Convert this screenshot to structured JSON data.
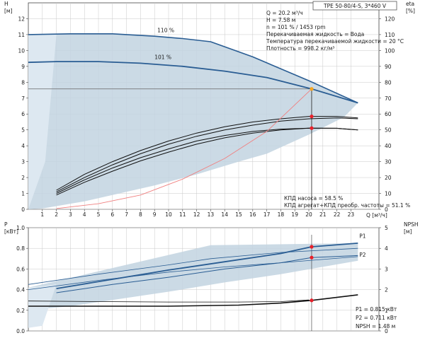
{
  "title_badge": "TPE 50-80/4-S, 3*460 V",
  "colors": {
    "envelope": "#c2d3e1",
    "envelope_light": "#dde8f1",
    "curve_blue": "#2a5d93",
    "curve_black": "#111111",
    "efficiency_red": "#f08080",
    "marker_red": "#e8202a",
    "marker_orange": "#f5a623",
    "grid": "#c9c9c9"
  },
  "chart_data": [
    {
      "type": "line",
      "title": "",
      "xlabel": "Q [м³/ч]",
      "ylabel": "H [м]",
      "y2label": "eta [%]",
      "xlim": [
        0,
        25
      ],
      "ylim": [
        0,
        13
      ],
      "y2lim": [
        0,
        130
      ],
      "x_ticks": [
        1,
        2,
        3,
        4,
        5,
        6,
        7,
        8,
        9,
        10,
        11,
        12,
        13,
        14,
        15,
        16,
        17,
        18,
        19,
        20,
        21,
        22,
        23
      ],
      "y_ticks": [
        0,
        1,
        2,
        3,
        4,
        5,
        6,
        7,
        8,
        9,
        10,
        11,
        12
      ],
      "y2_ticks": [
        0,
        10,
        20,
        30,
        40,
        50,
        60,
        70,
        80,
        90,
        100,
        110,
        120
      ],
      "grid": true,
      "duty_point": {
        "Q": 20.2,
        "H": 7.58
      },
      "info_lines": [
        "Q = 20.2 м³/ч",
        "H = 7.58 м",
        "n = 101 % / 1453 rpm",
        "Перекачиваемая жидкость = Вода",
        "Температура перекачиваемой жидкости = 20 °C",
        "Плотность = 998.2 кг/м³"
      ],
      "efficiency_lines": [
        "КПД насоса = 58.5 %",
        "КПД агрегат+КПД преобр. частоты = 51.1 %"
      ],
      "envelope": [
        [
          0,
          11.0
        ],
        [
          3,
          11.05
        ],
        [
          6,
          11.05
        ],
        [
          9,
          10.9
        ],
        [
          11,
          10.75
        ],
        [
          13,
          10.55
        ],
        [
          16,
          9.6
        ],
        [
          20,
          8.1
        ],
        [
          23.5,
          6.7
        ],
        [
          22.5,
          5.8
        ],
        [
          20,
          4.7
        ],
        [
          17,
          3.5
        ],
        [
          15,
          3.0
        ],
        [
          12,
          2.2
        ],
        [
          9,
          1.5
        ],
        [
          6,
          0.9
        ],
        [
          4,
          0.5
        ],
        [
          1,
          0.05
        ],
        [
          0,
          0
        ]
      ],
      "envelope_light": [
        [
          0,
          11.0
        ],
        [
          2,
          11.0
        ],
        [
          1.2,
          3.0
        ],
        [
          0,
          0
        ]
      ],
      "series": [
        {
          "name": "110 %",
          "axis": "y",
          "color_key": "curve_blue",
          "width": 1.6,
          "points": [
            [
              0,
              11.0
            ],
            [
              3,
              11.05
            ],
            [
              6,
              11.05
            ],
            [
              9,
              10.9
            ],
            [
              11,
              10.75
            ],
            [
              13,
              10.55
            ],
            [
              16,
              9.6
            ],
            [
              20,
              8.1
            ],
            [
              23.5,
              6.7
            ]
          ]
        },
        {
          "name": "101 %",
          "axis": "y",
          "color_key": "curve_blue",
          "width": 1.8,
          "points": [
            [
              0,
              9.25
            ],
            [
              2,
              9.3
            ],
            [
              5,
              9.3
            ],
            [
              8,
              9.2
            ],
            [
              11,
              9.0
            ],
            [
              14,
              8.7
            ],
            [
              17,
              8.3
            ],
            [
              20.2,
              7.58
            ],
            [
              23.5,
              6.7
            ]
          ]
        },
        {
          "axis": "y2",
          "color_key": "curve_black",
          "width": 1.0,
          "points": [
            [
              2,
              12
            ],
            [
              4,
              22
            ],
            [
              6,
              30
            ],
            [
              8,
              37
            ],
            [
              10,
              43
            ],
            [
              12,
              48
            ],
            [
              14,
              52
            ],
            [
              16,
              55
            ],
            [
              18,
              57
            ],
            [
              20,
              58.5
            ],
            [
              22,
              58.5
            ],
            [
              23.5,
              57.5
            ]
          ]
        },
        {
          "axis": "y2",
          "color_key": "curve_black",
          "width": 1.0,
          "points": [
            [
              2,
              11
            ],
            [
              4,
              20
            ],
            [
              6,
              28
            ],
            [
              8,
              35
            ],
            [
              10,
              41
            ],
            [
              12,
              46
            ],
            [
              14,
              50
            ],
            [
              16,
              53
            ],
            [
              18,
              55.5
            ],
            [
              20,
              57
            ],
            [
              22,
              57.5
            ],
            [
              23.5,
              57
            ]
          ]
        },
        {
          "axis": "y2",
          "color_key": "curve_black",
          "width": 1.0,
          "points": [
            [
              2,
              10
            ],
            [
              4,
              18.5
            ],
            [
              6,
              26
            ],
            [
              8,
              32.5
            ],
            [
              10,
              38
            ],
            [
              12,
              43
            ],
            [
              14,
              46.5
            ],
            [
              16,
              49
            ],
            [
              18,
              50.5
            ],
            [
              20,
              51.1
            ],
            [
              22,
              51
            ],
            [
              23.5,
              50
            ]
          ]
        },
        {
          "axis": "y2",
          "color_key": "curve_black",
          "width": 1.0,
          "points": [
            [
              2,
              9
            ],
            [
              4,
              17
            ],
            [
              6,
              24
            ],
            [
              8,
              30.5
            ],
            [
              10,
              36
            ],
            [
              12,
              41
            ],
            [
              14,
              45
            ],
            [
              16,
              48
            ],
            [
              18,
              50
            ],
            [
              20,
              51.1
            ],
            [
              22,
              51
            ],
            [
              23.5,
              50
            ]
          ]
        },
        {
          "axis": "y",
          "color_key": "efficiency_red",
          "width": 0.9,
          "points": [
            [
              2,
              0.05
            ],
            [
              5,
              0.35
            ],
            [
              8,
              0.9
            ],
            [
              11,
              1.9
            ],
            [
              14,
              3.2
            ],
            [
              17,
              4.9
            ],
            [
              20.2,
              7.58
            ]
          ]
        }
      ],
      "markers": [
        {
          "axis": "y",
          "x": 20.2,
          "y": 7.58,
          "color_key": "marker_orange"
        },
        {
          "axis": "y2",
          "x": 20.2,
          "y": 58.5,
          "color_key": "marker_red"
        },
        {
          "axis": "y2",
          "x": 20.2,
          "y": 51.1,
          "color_key": "marker_red"
        }
      ],
      "curve_labels": [
        {
          "text": "110 %",
          "x": 9.2,
          "y": 11.15
        },
        {
          "text": "101 %",
          "x": 9.0,
          "y": 9.45
        }
      ]
    },
    {
      "type": "line",
      "title": "",
      "ylabel": "P [кВт]",
      "y2label": "NPSH [м]",
      "xlim": [
        0,
        25
      ],
      "ylim": [
        0,
        1.0
      ],
      "y2lim": [
        0,
        5
      ],
      "y_ticks": [
        0,
        0.2,
        0.4,
        0.6,
        0.8,
        1.0
      ],
      "y_tick_labels": [
        "0.0",
        "0.2",
        "0.4",
        "0.6",
        "0.8",
        "1.0"
      ],
      "y2_ticks": [
        0,
        1,
        2,
        3,
        4,
        5
      ],
      "grid": true,
      "envelope": [
        [
          0,
          0.42
        ],
        [
          13,
          0.83
        ],
        [
          23.5,
          0.85
        ],
        [
          23.5,
          0.68
        ],
        [
          18,
          0.55
        ],
        [
          14,
          0.47
        ],
        [
          10,
          0.38
        ],
        [
          6,
          0.3
        ],
        [
          3,
          0.24
        ],
        [
          0,
          0.2
        ]
      ],
      "envelope_light": [
        [
          0,
          0.42
        ],
        [
          2,
          0.45
        ],
        [
          1,
          0.05
        ],
        [
          0,
          0.03
        ]
      ],
      "series": [
        {
          "name": "P1",
          "axis": "y",
          "color_key": "curve_blue",
          "width": 1.8,
          "points": [
            [
              2,
              0.41
            ],
            [
              6,
              0.5
            ],
            [
              10,
              0.59
            ],
            [
              14,
              0.67
            ],
            [
              18,
              0.75
            ],
            [
              20.2,
              0.815
            ],
            [
              23.5,
              0.85
            ]
          ]
        },
        {
          "name": "P2",
          "axis": "y",
          "color_key": "curve_blue",
          "width": 1.0,
          "points": [
            [
              2,
              0.37
            ],
            [
              6,
              0.45
            ],
            [
              10,
              0.52
            ],
            [
              14,
              0.6
            ],
            [
              18,
              0.66
            ],
            [
              20.2,
              0.711
            ],
            [
              23.5,
              0.73
            ]
          ]
        },
        {
          "axis": "y",
          "color_key": "curve_blue",
          "width": 0.8,
          "points": [
            [
              0,
              0.45
            ],
            [
              5,
              0.55
            ],
            [
              10,
              0.64
            ],
            [
              13,
              0.7
            ],
            [
              18,
              0.76
            ],
            [
              23.5,
              0.8
            ]
          ]
        },
        {
          "axis": "y",
          "color_key": "curve_blue",
          "width": 0.8,
          "points": [
            [
              0,
              0.4
            ],
            [
              5,
              0.49
            ],
            [
              10,
              0.57
            ],
            [
              14,
              0.62
            ],
            [
              18,
              0.66
            ],
            [
              23.5,
              0.72
            ]
          ]
        },
        {
          "name": "NPSH",
          "axis": "y2",
          "color_key": "curve_black",
          "width": 1.6,
          "points": [
            [
              0,
              1.2
            ],
            [
              5,
              1.2
            ],
            [
              10,
              1.2
            ],
            [
              15,
              1.25
            ],
            [
              18,
              1.35
            ],
            [
              20.2,
              1.48
            ],
            [
              23.5,
              1.75
            ]
          ]
        },
        {
          "axis": "y2",
          "color_key": "curve_black",
          "width": 0.8,
          "points": [
            [
              0,
              1.45
            ],
            [
              5,
              1.42
            ],
            [
              10,
              1.4
            ],
            [
              15,
              1.4
            ],
            [
              18,
              1.42
            ],
            [
              20,
              1.5
            ]
          ]
        }
      ],
      "markers": [
        {
          "axis": "y",
          "x": 20.2,
          "y": 0.815,
          "color_key": "marker_red"
        },
        {
          "axis": "y",
          "x": 20.2,
          "y": 0.711,
          "color_key": "marker_red"
        },
        {
          "axis": "y2",
          "x": 20.2,
          "y": 1.48,
          "color_key": "marker_red"
        }
      ],
      "curve_labels": [
        {
          "text": "P1",
          "x": 23.6,
          "y": 0.9
        },
        {
          "text": "P2",
          "x": 23.6,
          "y": 0.72
        }
      ],
      "info_lines": [
        "P1 = 0.815 кВт",
        "P2 = 0.711 кВт",
        "NPSH = 1.48 м"
      ]
    }
  ]
}
